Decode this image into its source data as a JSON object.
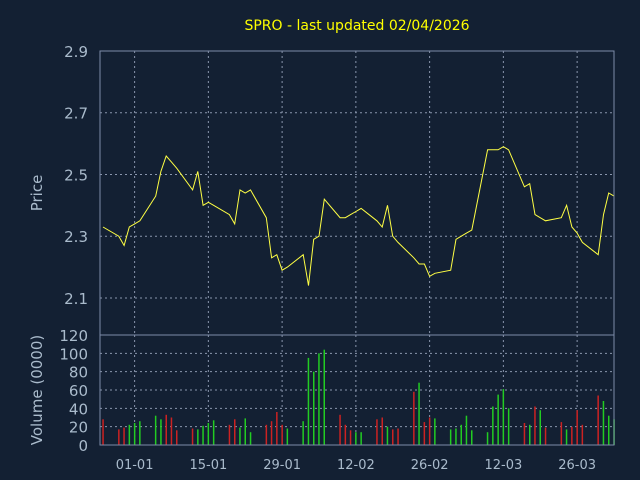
{
  "chart_data": [
    {
      "type": "line",
      "title": "SPRO - last updated 02/04/2026",
      "ylabel": "Price",
      "ylim": [
        1.98,
        2.9
      ],
      "yticks": [
        "2.9",
        "2.7",
        "2.5",
        "2.3",
        "2.1"
      ],
      "grid": true,
      "line_color": "#ffff44",
      "series": [
        {
          "x": [
            "2025-12-26",
            "2025-12-29",
            "2025-12-30",
            "2025-12-31",
            "2026-01-01",
            "2026-01-02",
            "2026-01-05",
            "2026-01-06",
            "2026-01-07",
            "2026-01-08",
            "2026-01-09",
            "2026-01-12",
            "2026-01-13",
            "2026-01-14",
            "2026-01-15",
            "2026-01-16",
            "2026-01-19",
            "2026-01-20",
            "2026-01-21",
            "2026-01-22",
            "2026-01-23",
            "2026-01-26",
            "2026-01-27",
            "2026-01-28",
            "2026-01-29",
            "2026-01-30",
            "2026-02-02",
            "2026-02-03",
            "2026-02-04",
            "2026-02-05",
            "2026-02-06",
            "2026-02-09",
            "2026-02-10",
            "2026-02-11",
            "2026-02-12",
            "2026-02-13",
            "2026-02-16",
            "2026-02-17",
            "2026-02-18",
            "2026-02-19",
            "2026-02-20",
            "2026-02-23",
            "2026-02-24",
            "2026-02-25",
            "2026-02-26",
            "2026-02-27",
            "2026-03-02",
            "2026-03-03",
            "2026-03-04",
            "2026-03-05",
            "2026-03-06",
            "2026-03-09",
            "2026-03-10",
            "2026-03-11",
            "2026-03-12",
            "2026-03-13",
            "2026-03-16",
            "2026-03-17",
            "2026-03-18",
            "2026-03-19",
            "2026-03-20",
            "2026-03-23",
            "2026-03-24",
            "2026-03-25",
            "2026-03-26",
            "2026-03-27",
            "2026-03-30",
            "2026-03-31",
            "2026-04-01",
            "2026-04-02"
          ],
          "values": [
            2.33,
            2.3,
            2.27,
            2.33,
            2.34,
            2.35,
            2.43,
            2.51,
            2.56,
            2.54,
            2.52,
            2.45,
            2.51,
            2.4,
            2.41,
            2.4,
            2.37,
            2.34,
            2.45,
            2.44,
            2.45,
            2.36,
            2.23,
            2.24,
            2.19,
            2.2,
            2.24,
            2.14,
            2.29,
            2.3,
            2.42,
            2.36,
            2.36,
            2.37,
            2.38,
            2.39,
            2.35,
            2.33,
            2.4,
            2.3,
            2.28,
            2.23,
            2.21,
            2.21,
            2.17,
            2.18,
            2.19,
            2.29,
            2.3,
            2.31,
            2.32,
            2.58,
            2.58,
            2.58,
            2.59,
            2.58,
            2.46,
            2.47,
            2.37,
            2.36,
            2.35,
            2.36,
            2.4,
            2.33,
            2.31,
            2.28,
            2.24,
            2.37,
            2.44,
            2.43
          ]
        }
      ]
    },
    {
      "type": "bar",
      "ylabel": "Volume (0000)",
      "ylim": [
        0,
        120
      ],
      "yticks": [
        "120",
        "100",
        "80",
        "60",
        "40",
        "20",
        "0"
      ],
      "xticks": [
        "01-01",
        "15-01",
        "29-01",
        "12-02",
        "26-02",
        "12-03",
        "26-03"
      ],
      "grid": true,
      "up_color": "#22cc22",
      "down_color": "#cc2222",
      "values": [
        28,
        17,
        19,
        22,
        24,
        26,
        32,
        28,
        33,
        30,
        16,
        18,
        17,
        21,
        24,
        27,
        22,
        28,
        19,
        29,
        14,
        22,
        26,
        36,
        22,
        18,
        26,
        95,
        80,
        100,
        104,
        33,
        22,
        16,
        14,
        14,
        28,
        30,
        20,
        17,
        18,
        58,
        68,
        25,
        30,
        29,
        17,
        18,
        22,
        32,
        16,
        14,
        42,
        55,
        61,
        40,
        24,
        22,
        42,
        38,
        19,
        25,
        17,
        20,
        38,
        22,
        54,
        48,
        32,
        28
      ],
      "direction": [
        "down",
        "down",
        "down",
        "up",
        "up",
        "up",
        "up",
        "up",
        "down",
        "down",
        "down",
        "down",
        "up",
        "up",
        "up",
        "up",
        "down",
        "down",
        "up",
        "up",
        "up",
        "down",
        "down",
        "down",
        "down",
        "up",
        "up",
        "up",
        "up",
        "up",
        "up",
        "down",
        "down",
        "down",
        "up",
        "up",
        "down",
        "down",
        "up",
        "down",
        "down",
        "down",
        "up",
        "down",
        "down",
        "up",
        "up",
        "up",
        "up",
        "up",
        "up",
        "up",
        "up",
        "up",
        "up",
        "up",
        "down",
        "up",
        "down",
        "up",
        "down",
        "down",
        "up",
        "down",
        "down",
        "down",
        "down",
        "up",
        "up",
        "up"
      ]
    }
  ]
}
